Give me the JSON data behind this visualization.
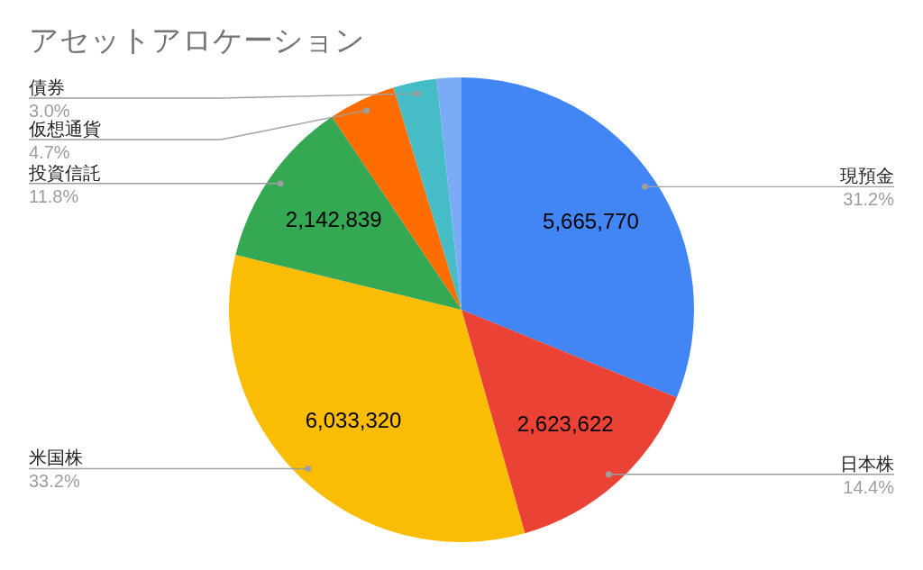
{
  "chart_data": {
    "type": "pie",
    "title": "アセットアロケーション",
    "categories": [
      "現預金",
      "日本株",
      "米国株",
      "投資信託",
      "仮想通貨",
      "債券",
      null
    ],
    "values": [
      5665770,
      2623622,
      6033320,
      2142839,
      850000,
      550000,
      310000
    ],
    "colors": [
      "#4285f4",
      "#ea4335",
      "#fbbc04",
      "#34a853",
      "#ff6d01",
      "#46bdc6",
      "#7baaf7"
    ],
    "value_labels": [
      "5,665,770",
      "2,623,622",
      "6,033,320",
      "2,142,839",
      null,
      null,
      null
    ],
    "annotations": [
      "31.2%",
      "14.4%",
      "33.2%",
      "11.8%",
      "4.7%",
      "3.0%"
    ]
  }
}
